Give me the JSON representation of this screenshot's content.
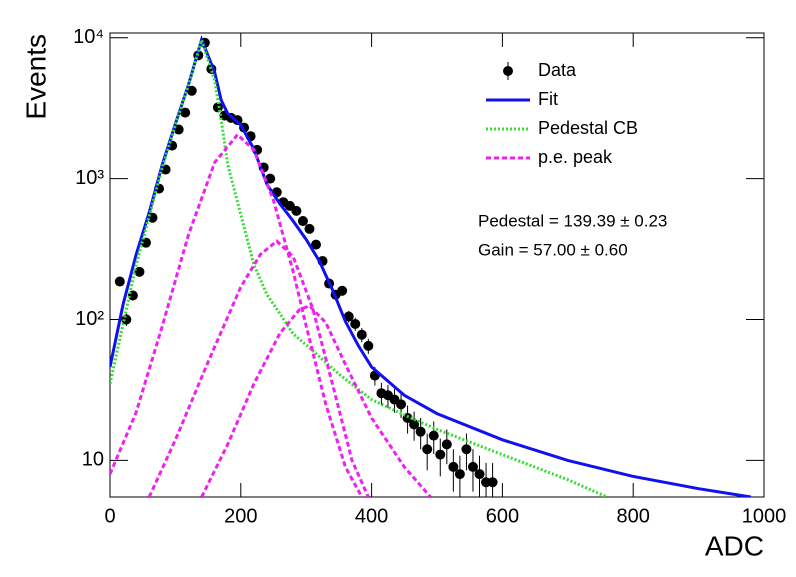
{
  "chart_data": {
    "type": "line",
    "y_label": "Events",
    "x_label": "ADC",
    "log_y": true,
    "xlim": [
      0,
      1000
    ],
    "ylim": [
      5.5,
      10800
    ],
    "xticks": [
      0,
      200,
      400,
      600,
      800,
      1000
    ],
    "yticks": [
      10,
      {
        "value": 100,
        "label": "10²"
      },
      {
        "value": 1000,
        "label": "10³"
      },
      {
        "value": 10000,
        "label": "10⁴"
      }
    ],
    "annotations": [
      "Pedestal = 139.39 ± 0.23",
      "Gain = 57.00 ± 0.60"
    ],
    "series": [
      {
        "name": "Data",
        "style": "points",
        "color": "#000000",
        "x": [
          15,
          25,
          35,
          45,
          55,
          65,
          75,
          85,
          95,
          105,
          115,
          125,
          135,
          145,
          155,
          165,
          175,
          185,
          195,
          205,
          215,
          225,
          235,
          245,
          255,
          265,
          275,
          285,
          295,
          305,
          315,
          325,
          335,
          345,
          355,
          365,
          375,
          385,
          395,
          405,
          415,
          425,
          435,
          445,
          455,
          465,
          475,
          485,
          495,
          505,
          515,
          525,
          535,
          545,
          555,
          565,
          575,
          585
        ],
        "values": [
          186,
          100,
          148,
          218,
          351,
          528,
          849,
          1160,
          1714,
          2230,
          2940,
          4200,
          7500,
          9200,
          6000,
          3200,
          2800,
          2700,
          2600,
          2300,
          2000,
          1600,
          1200,
          1000,
          800,
          680,
          640,
          590,
          500,
          440,
          340,
          260,
          180,
          150,
          160,
          105,
          93,
          78,
          65,
          40,
          30,
          29,
          27,
          25,
          20,
          18,
          16,
          12,
          15,
          11,
          13,
          9,
          8,
          12,
          9,
          8,
          7,
          7
        ],
        "errors": [
          14,
          10,
          12,
          15,
          19,
          23,
          29,
          34,
          41,
          47,
          54,
          65,
          87,
          96,
          77,
          57,
          53,
          52,
          51,
          48,
          45,
          40,
          35,
          32,
          28,
          26,
          25,
          24,
          22,
          21,
          18,
          16,
          13,
          12,
          13,
          10,
          10,
          9,
          8,
          6,
          5.5,
          5.4,
          5.2,
          5,
          4.5,
          4.2,
          4,
          3.5,
          3.9,
          3.3,
          3.6,
          3,
          2.8,
          3.5,
          3,
          2.8,
          2.6,
          2.6
        ]
      },
      {
        "name": "Fit",
        "style": "solid",
        "color": "#1010f0",
        "x": [
          0,
          20,
          40,
          60,
          80,
          100,
          120,
          140,
          160,
          170,
          180,
          200,
          220,
          240,
          260,
          280,
          300,
          320,
          340,
          360,
          380,
          400,
          450,
          500,
          600,
          700,
          800,
          900,
          980
        ],
        "values": [
          46,
          128,
          290,
          575,
          1260,
          2450,
          4650,
          9700,
          5700,
          3600,
          2900,
          2400,
          1620,
          910,
          660,
          500,
          370,
          260,
          163,
          97,
          65,
          46,
          29,
          21.5,
          14,
          10,
          7.7,
          6.3,
          5.5
        ]
      },
      {
        "name": "Pedestal CB",
        "style": "dotted",
        "color": "#33dd33",
        "x": [
          0,
          40,
          80,
          100,
          120,
          140,
          160,
          170,
          180,
          200,
          220,
          240,
          260,
          280,
          300,
          350,
          400,
          450,
          500,
          600,
          700,
          760
        ],
        "values": [
          35,
          245,
          1200,
          2400,
          4600,
          9600,
          5000,
          2600,
          1260,
          555,
          245,
          150,
          110,
          79,
          66,
          41,
          27,
          21,
          16.6,
          11,
          7.3,
          5.5
        ]
      },
      {
        "name": "p.e. peak",
        "style": "dashed",
        "color": "#ee22ee",
        "x": [
          0,
          40,
          80,
          120,
          160,
          195,
          220,
          250,
          280,
          300,
          330,
          360,
          385,
          null,
          60,
          100,
          150,
          200,
          230,
          255,
          280,
          310,
          340,
          370,
          395,
          null,
          140,
          180,
          220,
          260,
          290,
          305,
          330,
          360,
          400,
          450,
          490
        ],
        "values": [
          8,
          22,
          90,
          400,
          1300,
          2050,
          1600,
          700,
          220,
          90,
          25,
          9,
          5.5,
          null,
          5.5,
          14,
          50,
          170,
          290,
          360,
          280,
          120,
          35,
          10,
          5.5,
          null,
          5.5,
          13,
          35,
          80,
          118,
          125,
          95,
          48,
          20,
          9,
          5.5
        ]
      }
    ]
  }
}
